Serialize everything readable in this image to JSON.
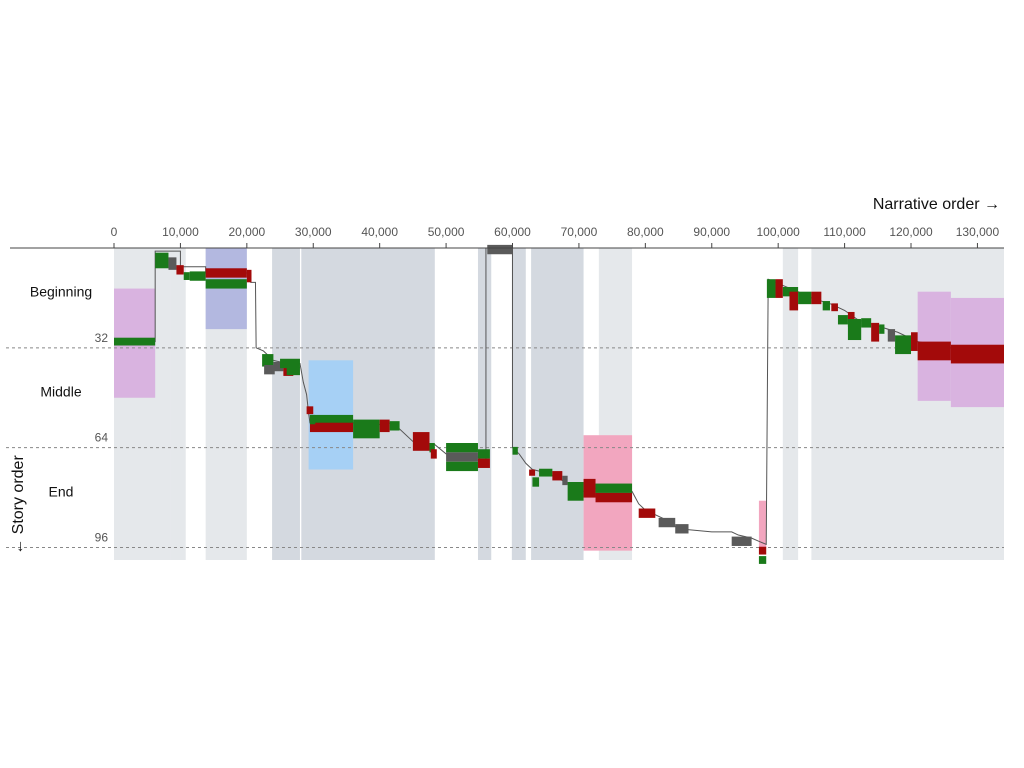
{
  "chart_data": {
    "type": "narrative-chart",
    "x_title": "Narrative order →",
    "y_title": "← Story order",
    "xlim": [
      0,
      134000
    ],
    "ylim": [
      0,
      100
    ],
    "x_ticks": [
      {
        "value": 0,
        "label": "0"
      },
      {
        "value": 10000,
        "label": "10,000"
      },
      {
        "value": 20000,
        "label": "20,000"
      },
      {
        "value": 30000,
        "label": "30,000"
      },
      {
        "value": 40000,
        "label": "40,000"
      },
      {
        "value": 50000,
        "label": "50,000"
      },
      {
        "value": 60000,
        "label": "60,000"
      },
      {
        "value": 70000,
        "label": "70,000"
      },
      {
        "value": 80000,
        "label": "80,000"
      },
      {
        "value": 90000,
        "label": "90,000"
      },
      {
        "value": 100000,
        "label": "100,000"
      },
      {
        "value": 110000,
        "label": "110,000"
      },
      {
        "value": 120000,
        "label": "120,000"
      },
      {
        "value": 130000,
        "label": "130,000"
      }
    ],
    "y_ticks": [
      {
        "value": 32,
        "label": "32"
      },
      {
        "value": 64,
        "label": "64"
      },
      {
        "value": 96,
        "label": "96"
      }
    ],
    "sections": [
      {
        "label": "Beginning",
        "center": 14
      },
      {
        "label": "Middle",
        "center": 46
      },
      {
        "label": "End",
        "center": 78
      }
    ],
    "colors": {
      "green": "#1a7a1a",
      "red": "#a30a0a",
      "gray": "#5a5a5a",
      "band_light": "#e5e8eb",
      "band_dark": "#d4d9e0",
      "violet": "#d9b3e0",
      "lavender": "#b3b8e0",
      "skyblue": "#a6d0f5",
      "pink": "#f2a6bf",
      "trace": "#555555",
      "grid": "#888888"
    },
    "bands": [
      {
        "x0": 0,
        "x1": 8500,
        "tone": "band_light"
      },
      {
        "x0": 8500,
        "x1": 10800,
        "tone": "band_light"
      },
      {
        "x0": 13800,
        "x1": 20000,
        "tone": "band_light"
      },
      {
        "x0": 23800,
        "x1": 28000,
        "tone": "band_dark"
      },
      {
        "x0": 28200,
        "x1": 48300,
        "tone": "band_dark"
      },
      {
        "x0": 54800,
        "x1": 56800,
        "tone": "band_dark"
      },
      {
        "x0": 59900,
        "x1": 62000,
        "tone": "band_dark"
      },
      {
        "x0": 62800,
        "x1": 70700,
        "tone": "band_dark"
      },
      {
        "x0": 73000,
        "x1": 78000,
        "tone": "band_light"
      },
      {
        "x0": 100700,
        "x1": 103000,
        "tone": "band_light"
      },
      {
        "x0": 105000,
        "x1": 134000,
        "tone": "band_light"
      }
    ],
    "highlights": [
      {
        "x0": 0,
        "x1": 6200,
        "y0": 13,
        "y1": 48,
        "tone": "violet"
      },
      {
        "x0": 13800,
        "x1": 20000,
        "y0": 0,
        "y1": 26,
        "tone": "lavender"
      },
      {
        "x0": 29300,
        "x1": 36000,
        "y0": 36,
        "y1": 71,
        "tone": "skyblue"
      },
      {
        "x0": 70700,
        "x1": 78000,
        "y0": 60,
        "y1": 97,
        "tone": "pink"
      },
      {
        "x0": 97100,
        "x1": 98200,
        "y0": 81,
        "y1": 96,
        "tone": "pink"
      },
      {
        "x0": 121000,
        "x1": 126000,
        "y0": 14,
        "y1": 49,
        "tone": "violet"
      },
      {
        "x0": 126000,
        "x1": 134000,
        "y0": 16,
        "y1": 51,
        "tone": "violet"
      }
    ],
    "trace": [
      [
        0,
        30
      ],
      [
        6200,
        30
      ],
      [
        6200,
        1
      ],
      [
        10000,
        1
      ],
      [
        10000,
        6
      ],
      [
        13800,
        6
      ],
      [
        13800,
        8
      ],
      [
        20600,
        8
      ],
      [
        20600,
        11
      ],
      [
        21300,
        11
      ],
      [
        21400,
        32
      ],
      [
        22500,
        33
      ],
      [
        24000,
        36
      ],
      [
        26000,
        37
      ],
      [
        28000,
        37
      ],
      [
        28500,
        43
      ],
      [
        29000,
        47
      ],
      [
        29300,
        53
      ],
      [
        29500,
        56
      ],
      [
        36000,
        56
      ],
      [
        38500,
        57
      ],
      [
        42000,
        56
      ],
      [
        45000,
        62
      ],
      [
        48300,
        63
      ],
      [
        50000,
        66
      ],
      [
        54800,
        67
      ],
      [
        56000,
        70
      ],
      [
        56000,
        0
      ],
      [
        60000,
        0
      ],
      [
        60000,
        64
      ],
      [
        61000,
        66
      ],
      [
        62000,
        69
      ],
      [
        63000,
        71
      ],
      [
        65000,
        72
      ],
      [
        67000,
        74
      ],
      [
        69000,
        76
      ],
      [
        70700,
        78
      ],
      [
        72500,
        77
      ],
      [
        78000,
        78
      ],
      [
        79000,
        82
      ],
      [
        80000,
        84
      ],
      [
        83000,
        87
      ],
      [
        85000,
        90
      ],
      [
        90000,
        91
      ],
      [
        93000,
        91
      ],
      [
        94000,
        92
      ],
      [
        96000,
        93
      ],
      [
        97100,
        94
      ],
      [
        98200,
        95
      ],
      [
        98500,
        10
      ],
      [
        100700,
        12
      ],
      [
        103000,
        14
      ],
      [
        105000,
        16
      ],
      [
        108000,
        18
      ],
      [
        110000,
        20
      ],
      [
        112000,
        23
      ],
      [
        115000,
        25
      ],
      [
        118000,
        27
      ],
      [
        121000,
        30
      ],
      [
        126000,
        32
      ],
      [
        134000,
        33
      ]
    ],
    "segments": [
      {
        "x0": 0,
        "x1": 6200,
        "y": 30,
        "h": 2.5,
        "color": "green"
      },
      {
        "x0": 6200,
        "x1": 8200,
        "y": 4,
        "h": 5,
        "color": "green"
      },
      {
        "x0": 8200,
        "x1": 9400,
        "y": 5,
        "h": 4,
        "color": "gray"
      },
      {
        "x0": 9400,
        "x1": 10500,
        "y": 7,
        "h": 3,
        "color": "red"
      },
      {
        "x0": 10500,
        "x1": 11400,
        "y": 9,
        "h": 2.5,
        "color": "green"
      },
      {
        "x0": 11400,
        "x1": 13800,
        "y": 9,
        "h": 3,
        "color": "green"
      },
      {
        "x0": 13800,
        "x1": 20000,
        "y": 8,
        "h": 3,
        "color": "red"
      },
      {
        "x0": 13800,
        "x1": 20000,
        "y": 11.5,
        "h": 3,
        "color": "green"
      },
      {
        "x0": 20000,
        "x1": 20700,
        "y": 9,
        "h": 4,
        "color": "red"
      },
      {
        "x0": 22300,
        "x1": 24000,
        "y": 36,
        "h": 4,
        "color": "green"
      },
      {
        "x0": 22600,
        "x1": 24200,
        "y": 39,
        "h": 3,
        "color": "gray"
      },
      {
        "x0": 24000,
        "x1": 25500,
        "y": 38,
        "h": 3,
        "color": "gray"
      },
      {
        "x0": 25500,
        "x1": 27000,
        "y": 39,
        "h": 4,
        "color": "red"
      },
      {
        "x0": 25000,
        "x1": 28000,
        "y": 37,
        "h": 3,
        "color": "green"
      },
      {
        "x0": 26000,
        "x1": 28000,
        "y": 39.5,
        "h": 2.5,
        "color": "green"
      },
      {
        "x0": 29000,
        "x1": 30000,
        "y": 52,
        "h": 2.5,
        "color": "red"
      },
      {
        "x0": 29500,
        "x1": 36000,
        "y": 55,
        "h": 3,
        "color": "green"
      },
      {
        "x0": 29500,
        "x1": 36000,
        "y": 57.5,
        "h": 3,
        "color": "red"
      },
      {
        "x0": 29500,
        "x1": 30300,
        "y": 55,
        "h": 3,
        "color": "green"
      },
      {
        "x0": 36000,
        "x1": 40000,
        "y": 58,
        "h": 6,
        "color": "green"
      },
      {
        "x0": 40000,
        "x1": 41500,
        "y": 57,
        "h": 4,
        "color": "red"
      },
      {
        "x0": 41500,
        "x1": 43000,
        "y": 57,
        "h": 3,
        "color": "green"
      },
      {
        "x0": 45000,
        "x1": 47500,
        "y": 62,
        "h": 6,
        "color": "red"
      },
      {
        "x0": 47500,
        "x1": 48300,
        "y": 64,
        "h": 3,
        "color": "green"
      },
      {
        "x0": 47700,
        "x1": 48600,
        "y": 66,
        "h": 3,
        "color": "red"
      },
      {
        "x0": 50000,
        "x1": 54800,
        "y": 64,
        "h": 3,
        "color": "green"
      },
      {
        "x0": 50000,
        "x1": 54800,
        "y": 67,
        "h": 3,
        "color": "gray"
      },
      {
        "x0": 50000,
        "x1": 54800,
        "y": 70,
        "h": 3,
        "color": "green"
      },
      {
        "x0": 54800,
        "x1": 56600,
        "y": 66,
        "h": 3,
        "color": "green"
      },
      {
        "x0": 54800,
        "x1": 56600,
        "y": 69,
        "h": 3,
        "color": "red"
      },
      {
        "x0": 56200,
        "x1": 60000,
        "y": 0.5,
        "h": 3,
        "color": "gray"
      },
      {
        "x0": 60000,
        "x1": 60800,
        "y": 65,
        "h": 2.5,
        "color": "green"
      },
      {
        "x0": 62500,
        "x1": 63400,
        "y": 72,
        "h": 2,
        "color": "red"
      },
      {
        "x0": 63000,
        "x1": 64000,
        "y": 75,
        "h": 3,
        "color": "green"
      },
      {
        "x0": 64000,
        "x1": 66000,
        "y": 72,
        "h": 2.5,
        "color": "green"
      },
      {
        "x0": 66000,
        "x1": 67500,
        "y": 73,
        "h": 3,
        "color": "red"
      },
      {
        "x0": 67500,
        "x1": 68300,
        "y": 74.5,
        "h": 3,
        "color": "gray"
      },
      {
        "x0": 68300,
        "x1": 70700,
        "y": 78,
        "h": 6,
        "color": "green"
      },
      {
        "x0": 70700,
        "x1": 72500,
        "y": 77,
        "h": 6,
        "color": "red"
      },
      {
        "x0": 72500,
        "x1": 78000,
        "y": 77,
        "h": 3,
        "color": "green"
      },
      {
        "x0": 72500,
        "x1": 78000,
        "y": 80,
        "h": 3,
        "color": "red"
      },
      {
        "x0": 79000,
        "x1": 81500,
        "y": 85,
        "h": 3,
        "color": "red"
      },
      {
        "x0": 82000,
        "x1": 84500,
        "y": 88,
        "h": 3,
        "color": "gray"
      },
      {
        "x0": 84500,
        "x1": 86500,
        "y": 90,
        "h": 3,
        "color": "gray"
      },
      {
        "x0": 93000,
        "x1": 96000,
        "y": 94,
        "h": 3,
        "color": "gray"
      },
      {
        "x0": 97100,
        "x1": 98200,
        "y": 97,
        "h": 2.5,
        "color": "red"
      },
      {
        "x0": 97100,
        "x1": 98200,
        "y": 100,
        "h": 2.5,
        "color": "green"
      },
      {
        "x0": 98300,
        "x1": 99600,
        "y": 13,
        "h": 6,
        "color": "green"
      },
      {
        "x0": 99600,
        "x1": 100700,
        "y": 13,
        "h": 6,
        "color": "red"
      },
      {
        "x0": 100700,
        "x1": 103000,
        "y": 14,
        "h": 3,
        "color": "green"
      },
      {
        "x0": 101700,
        "x1": 103000,
        "y": 17,
        "h": 6,
        "color": "red"
      },
      {
        "x0": 103000,
        "x1": 105000,
        "y": 16,
        "h": 4,
        "color": "green"
      },
      {
        "x0": 105000,
        "x1": 106500,
        "y": 16,
        "h": 4,
        "color": "red"
      },
      {
        "x0": 106700,
        "x1": 107800,
        "y": 18.5,
        "h": 3,
        "color": "green"
      },
      {
        "x0": 108000,
        "x1": 109000,
        "y": 19,
        "h": 2.5,
        "color": "red"
      },
      {
        "x0": 109000,
        "x1": 110500,
        "y": 23,
        "h": 3,
        "color": "green"
      },
      {
        "x0": 110500,
        "x1": 111500,
        "y": 22,
        "h": 3,
        "color": "red"
      },
      {
        "x0": 110500,
        "x1": 112500,
        "y": 24,
        "h": 2.5,
        "color": "green"
      },
      {
        "x0": 110500,
        "x1": 112500,
        "y": 26.5,
        "h": 6,
        "color": "green"
      },
      {
        "x0": 112500,
        "x1": 114000,
        "y": 24,
        "h": 3,
        "color": "green"
      },
      {
        "x0": 114000,
        "x1": 115200,
        "y": 27,
        "h": 6,
        "color": "red"
      },
      {
        "x0": 115200,
        "x1": 116000,
        "y": 26,
        "h": 3,
        "color": "green"
      },
      {
        "x0": 116500,
        "x1": 117600,
        "y": 28,
        "h": 4,
        "color": "gray"
      },
      {
        "x0": 117600,
        "x1": 120000,
        "y": 31,
        "h": 6,
        "color": "green"
      },
      {
        "x0": 120000,
        "x1": 121000,
        "y": 30,
        "h": 6,
        "color": "red"
      },
      {
        "x0": 121000,
        "x1": 126000,
        "y": 33,
        "h": 6,
        "color": "red"
      },
      {
        "x0": 126000,
        "x1": 134000,
        "y": 34,
        "h": 6,
        "color": "red"
      }
    ]
  }
}
